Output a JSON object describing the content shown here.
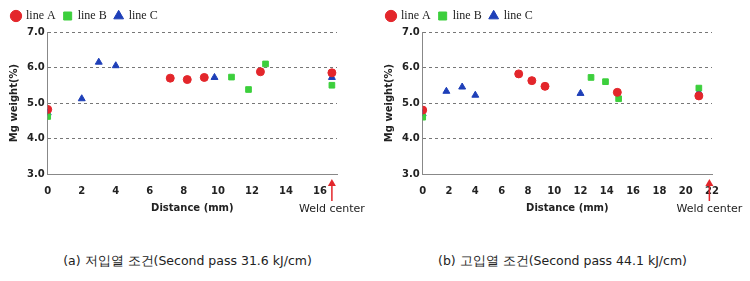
{
  "chart_data": [
    {
      "type": "scatter",
      "title": "(a) 저입열 조건(Second pass 31.6 kJ/cm)",
      "x_label": "Distance (mm)",
      "y_label": "Mg weight(%)",
      "xlim": [
        0,
        17
      ],
      "xticks": [
        0,
        2,
        4,
        6,
        8,
        10,
        12,
        14,
        16
      ],
      "ylim": [
        3,
        7
      ],
      "yticks": [
        {
          "value": 3,
          "label": "3.0"
        },
        {
          "value": 4,
          "label": "4.0"
        },
        {
          "value": 5,
          "label": "5.0"
        },
        {
          "value": 6,
          "label": "6.0"
        },
        {
          "value": 7,
          "label": "7.0"
        }
      ],
      "grid": true,
      "legend": "top-left",
      "annotations": [
        {
          "text": "Weld center",
          "x": 16.7,
          "color": "#e3262b"
        }
      ],
      "series": [
        {
          "name": "line A",
          "color": "#e3262b",
          "marker": "circle",
          "x": [
            0,
            7.2,
            8.2,
            9.2,
            12.5,
            16.7
          ],
          "values": [
            4.82,
            5.7,
            5.66,
            5.72,
            5.88,
            5.85
          ]
        },
        {
          "name": "line B",
          "color": "#3ccf3c",
          "marker": "square",
          "x": [
            0,
            10.8,
            11.8,
            12.8,
            16.7
          ],
          "values": [
            4.62,
            5.73,
            5.38,
            6.1,
            5.5
          ]
        },
        {
          "name": "line C",
          "color": "#1e3fb8",
          "marker": "triangle",
          "x": [
            0,
            2,
            3,
            4,
            9.8,
            16.7
          ],
          "values": [
            4.72,
            5.12,
            6.15,
            6.05,
            5.72,
            5.72
          ]
        }
      ]
    },
    {
      "type": "scatter",
      "title": "(b) 고입열 조건(Second pass 44.1 kJ/cm)",
      "x_label": "Distance (mm)",
      "y_label": "Mg weight(%)",
      "xlim": [
        0,
        22
      ],
      "xticks": [
        0,
        2,
        4,
        6,
        8,
        10,
        12,
        14,
        16,
        18,
        20,
        22
      ],
      "ylim": [
        3,
        7
      ],
      "yticks": [
        {
          "value": 3,
          "label": "3.0"
        },
        {
          "value": 4,
          "label": "4.0"
        },
        {
          "value": 5,
          "label": "5.0"
        },
        {
          "value": 6,
          "label": "6.0"
        },
        {
          "value": 7,
          "label": "7.0"
        }
      ],
      "grid": true,
      "legend": "top-left",
      "annotations": [
        {
          "text": "Weld center",
          "x": 21.8,
          "color": "#e3262b"
        }
      ],
      "series": [
        {
          "name": "line A",
          "color": "#e3262b",
          "marker": "circle",
          "x": [
            0,
            7.3,
            8.3,
            9.3,
            14.8,
            21
          ],
          "values": [
            4.8,
            5.82,
            5.63,
            5.47,
            5.3,
            5.2
          ]
        },
        {
          "name": "line B",
          "color": "#3ccf3c",
          "marker": "square",
          "x": [
            0,
            12.8,
            13.9,
            14.9,
            21
          ],
          "values": [
            4.6,
            5.72,
            5.6,
            5.12,
            5.42
          ]
        },
        {
          "name": "line C",
          "color": "#1e3fb8",
          "marker": "triangle",
          "x": [
            0,
            1.8,
            3,
            4,
            12,
            21
          ],
          "values": [
            4.7,
            5.33,
            5.45,
            5.22,
            5.27,
            5.3
          ]
        }
      ]
    }
  ]
}
